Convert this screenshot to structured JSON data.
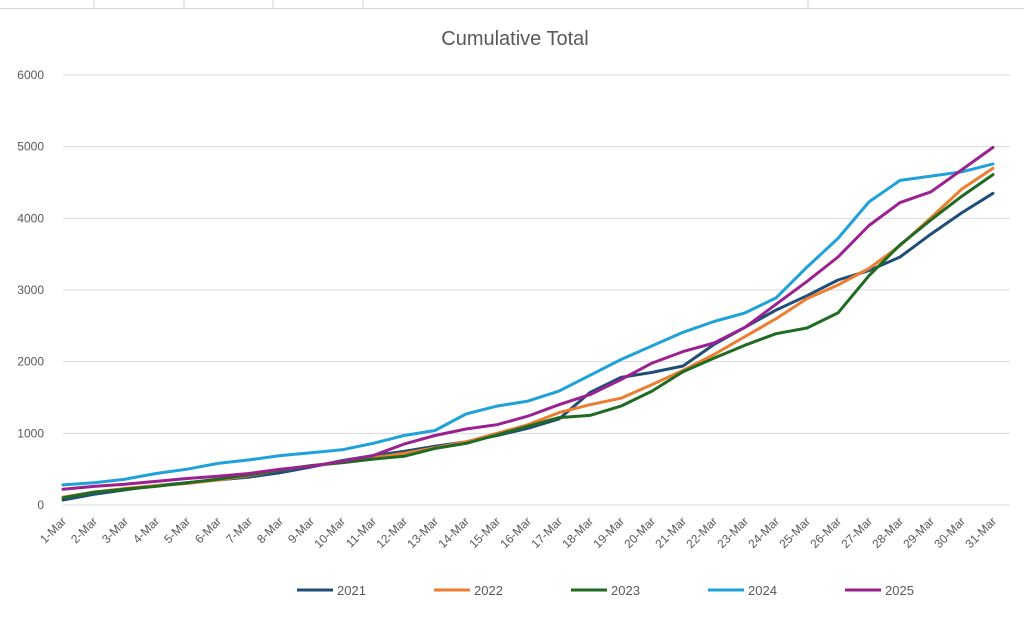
{
  "chart_data": {
    "type": "line",
    "title": "Cumulative Total",
    "xlabel": "",
    "ylabel": "",
    "ylim": [
      0,
      6000
    ],
    "yticks": [
      0,
      1000,
      2000,
      3000,
      4000,
      5000,
      6000
    ],
    "grid": true,
    "legend_position": "bottom",
    "categories": [
      "1-Mar",
      "2-Mar",
      "3-Mar",
      "4-Mar",
      "5-Mar",
      "6-Mar",
      "7-Mar",
      "8-Mar",
      "9-Mar",
      "10-Mar",
      "11-Mar",
      "12-Mar",
      "13-Mar",
      "14-Mar",
      "15-Mar",
      "16-Mar",
      "17-Mar",
      "18-Mar",
      "19-Mar",
      "20-Mar",
      "21-Mar",
      "22-Mar",
      "23-Mar",
      "24-Mar",
      "25-Mar",
      "26-Mar",
      "27-Mar",
      "28-Mar",
      "29-Mar",
      "30-Mar",
      "31-Mar"
    ],
    "series": [
      {
        "name": "2021",
        "color": "#1f4e79",
        "values": [
          70,
          150,
          210,
          270,
          310,
          350,
          390,
          450,
          530,
          620,
          690,
          750,
          820,
          880,
          970,
          1070,
          1200,
          1570,
          1780,
          1850,
          1940,
          2240,
          2480,
          2720,
          2920,
          3140,
          3270,
          3460,
          3780,
          4080,
          4350
        ]
      },
      {
        "name": "2022",
        "color": "#ed7d31",
        "values": [
          110,
          180,
          230,
          270,
          300,
          350,
          410,
          490,
          550,
          600,
          660,
          720,
          800,
          880,
          1000,
          1120,
          1290,
          1400,
          1490,
          1680,
          1880,
          2100,
          2350,
          2600,
          2880,
          3070,
          3300,
          3620,
          4010,
          4410,
          4700
        ]
      },
      {
        "name": "2023",
        "color": "#1e6b22",
        "values": [
          100,
          180,
          220,
          260,
          310,
          360,
          420,
          490,
          550,
          590,
          640,
          680,
          790,
          860,
          980,
          1100,
          1220,
          1250,
          1380,
          1590,
          1860,
          2050,
          2230,
          2390,
          2470,
          2680,
          3200,
          3630,
          3980,
          4310,
          4610
        ]
      },
      {
        "name": "2024",
        "color": "#1fa2d8",
        "values": [
          280,
          310,
          360,
          440,
          500,
          580,
          630,
          690,
          730,
          770,
          860,
          970,
          1040,
          1270,
          1380,
          1450,
          1590,
          1810,
          2030,
          2220,
          2410,
          2560,
          2680,
          2890,
          3320,
          3720,
          4230,
          4530,
          4590,
          4650,
          4760
        ]
      },
      {
        "name": "2025",
        "color": "#9b2191",
        "values": [
          220,
          260,
          290,
          330,
          370,
          400,
          440,
          500,
          540,
          610,
          690,
          850,
          970,
          1060,
          1120,
          1240,
          1400,
          1540,
          1750,
          1980,
          2140,
          2260,
          2480,
          2800,
          3120,
          3460,
          3900,
          4220,
          4370,
          4680,
          4990
        ]
      }
    ]
  }
}
